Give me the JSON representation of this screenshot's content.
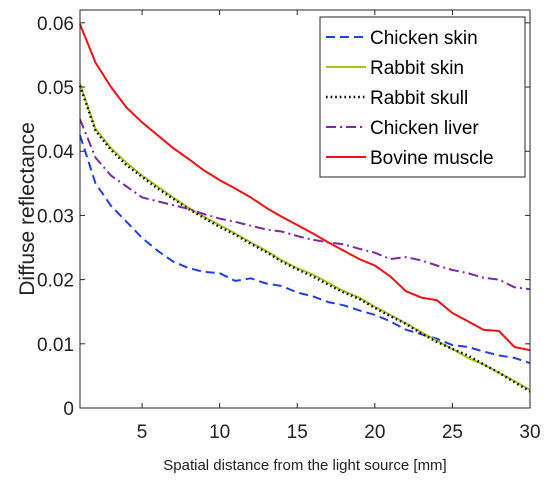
{
  "chart_data": {
    "type": "line",
    "xlabel": "Spatial distance from the light source [mm]",
    "ylabel": "Diffuse reflectance",
    "xlim": [
      1,
      30
    ],
    "ylim": [
      0,
      0.062
    ],
    "xticks": [
      5,
      10,
      15,
      20,
      25,
      30
    ],
    "yticks": [
      0,
      0.01,
      0.02,
      0.03,
      0.04,
      0.05,
      0.06
    ],
    "ytick_labels": [
      "0",
      "0.01",
      "0.02",
      "0.03",
      "0.04",
      "0.05",
      "0.06"
    ],
    "grid": false,
    "legend_position": "top-right",
    "x": [
      1,
      2,
      3,
      4,
      5,
      6,
      7,
      8,
      9,
      10,
      11,
      12,
      13,
      14,
      15,
      16,
      17,
      18,
      19,
      20,
      21,
      22,
      23,
      24,
      25,
      26,
      27,
      28,
      29,
      30
    ],
    "series": [
      {
        "name": "Chicken skin",
        "color": "#1f3fe0",
        "dash": "dashed",
        "values": [
          0.0425,
          0.035,
          0.0315,
          0.029,
          0.0265,
          0.0245,
          0.0228,
          0.0218,
          0.0212,
          0.021,
          0.0198,
          0.0202,
          0.0194,
          0.019,
          0.018,
          0.0174,
          0.0165,
          0.016,
          0.0152,
          0.0145,
          0.0135,
          0.0122,
          0.0115,
          0.0108,
          0.0098,
          0.0095,
          0.0088,
          0.0082,
          0.0078,
          0.007
        ]
      },
      {
        "name": "Rabbit skin",
        "color": "#a8c418",
        "dash": "solid",
        "values": [
          0.0505,
          0.0435,
          0.0405,
          0.0382,
          0.0362,
          0.0345,
          0.0328,
          0.0312,
          0.0298,
          0.0285,
          0.0272,
          0.0258,
          0.0245,
          0.023,
          0.0218,
          0.0208,
          0.0195,
          0.0182,
          0.0172,
          0.0158,
          0.0145,
          0.0132,
          0.0118,
          0.0105,
          0.0092,
          0.0078,
          0.0068,
          0.0055,
          0.0042,
          0.0028
        ]
      },
      {
        "name": "Rabbit skull",
        "color": "#000000",
        "dash": "dotted",
        "values": [
          0.0502,
          0.0432,
          0.0402,
          0.0378,
          0.036,
          0.0342,
          0.0326,
          0.031,
          0.0296,
          0.0282,
          0.027,
          0.0256,
          0.0243,
          0.0228,
          0.0216,
          0.0205,
          0.0192,
          0.018,
          0.017,
          0.0156,
          0.0143,
          0.0131,
          0.0116,
          0.0103,
          0.0092,
          0.0082,
          0.0068,
          0.0055,
          0.004,
          0.0026
        ]
      },
      {
        "name": "Chicken liver",
        "color": "#7b2aa0",
        "dash": "dashdot",
        "values": [
          0.045,
          0.039,
          0.0362,
          0.0345,
          0.0328,
          0.0322,
          0.0316,
          0.031,
          0.0302,
          0.0295,
          0.029,
          0.0284,
          0.0278,
          0.0275,
          0.0268,
          0.0262,
          0.0258,
          0.0255,
          0.0248,
          0.0242,
          0.0232,
          0.0235,
          0.023,
          0.0222,
          0.0215,
          0.021,
          0.0203,
          0.02,
          0.0188,
          0.0185
        ]
      },
      {
        "name": "Bovine muscle",
        "color": "#ee1111",
        "dash": "solid",
        "values": [
          0.0598,
          0.0538,
          0.05,
          0.0468,
          0.0445,
          0.0425,
          0.0405,
          0.0388,
          0.037,
          0.0355,
          0.0342,
          0.0328,
          0.0312,
          0.0298,
          0.0285,
          0.0272,
          0.0258,
          0.0245,
          0.0232,
          0.0222,
          0.0205,
          0.0182,
          0.0172,
          0.0168,
          0.0148,
          0.0135,
          0.0122,
          0.012,
          0.0095,
          0.009
        ]
      }
    ]
  }
}
